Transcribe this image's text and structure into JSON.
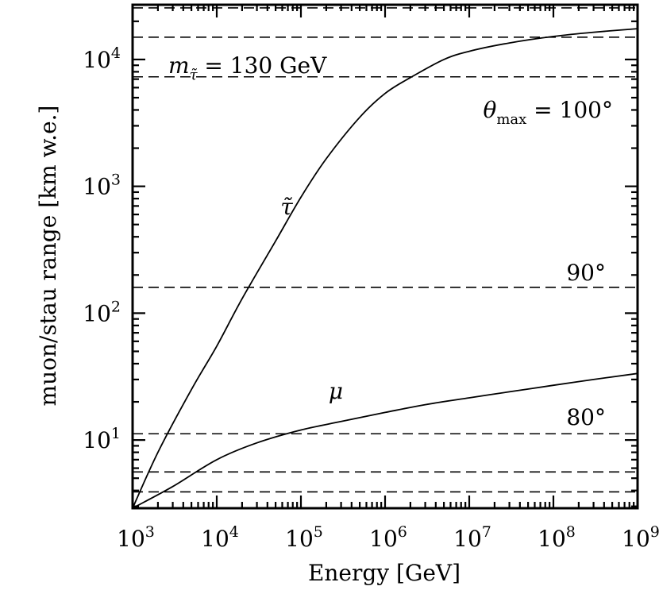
{
  "chart_data": {
    "type": "line",
    "xlabel": "Energy [GeV]",
    "ylabel": "muon/stau range [km w.e.]",
    "x_scale": "log",
    "y_scale": "log",
    "xlim": [
      1000,
      1000000000
    ],
    "ylim": [
      2.9,
      27000
    ],
    "x_ticks": [
      {
        "value": 1000,
        "base": "10",
        "exp": "3"
      },
      {
        "value": 10000,
        "base": "10",
        "exp": "4"
      },
      {
        "value": 100000,
        "base": "10",
        "exp": "5"
      },
      {
        "value": 1000000,
        "base": "10",
        "exp": "6"
      },
      {
        "value": 10000000,
        "base": "10",
        "exp": "7"
      },
      {
        "value": 100000000,
        "base": "10",
        "exp": "8"
      },
      {
        "value": 1000000000,
        "base": "10",
        "exp": "9"
      }
    ],
    "y_ticks": [
      {
        "value": 10,
        "base": "10",
        "exp": "1"
      },
      {
        "value": 100,
        "base": "10",
        "exp": "2"
      },
      {
        "value": 1000,
        "base": "10",
        "exp": "3"
      },
      {
        "value": 10000,
        "base": "10",
        "exp": "4"
      }
    ],
    "grid": false,
    "series": [
      {
        "label": "τ̃",
        "x": [
          1000,
          2000,
          5000,
          10000,
          20000,
          50000,
          100000,
          200000,
          500000,
          1000000,
          2000000,
          5000000,
          10000000,
          30000000,
          100000000,
          300000000,
          1000000000
        ],
        "y": [
          2.9,
          8,
          25,
          55,
          130,
          370,
          820,
          1650,
          3500,
          5400,
          7200,
          10000,
          11600,
          13500,
          15200,
          16400,
          17500
        ]
      },
      {
        "label": "μ",
        "x": [
          1000,
          3000,
          10000,
          30000,
          100000,
          300000,
          1000000,
          3000000,
          10000000,
          30000000,
          100000000,
          300000000,
          1000000000
        ],
        "y": [
          2.9,
          4.3,
          7,
          9.5,
          12,
          14,
          16.5,
          19,
          21.5,
          24,
          27,
          30,
          33.5
        ]
      }
    ],
    "reference_lines": [
      {
        "y": 3.9
      },
      {
        "y": 5.6
      },
      {
        "y": 11.2,
        "label": "80°"
      },
      {
        "y": 160,
        "label": "90°"
      },
      {
        "y": 7300
      },
      {
        "y": 15000
      },
      {
        "y": 25500
      }
    ],
    "annotations": {
      "mass": {
        "var": "m",
        "sub": "τ̃",
        "rest": " = 130 GeV"
      },
      "theta": {
        "var": "θ",
        "sub": "max",
        "rest": " = 100°"
      }
    }
  }
}
